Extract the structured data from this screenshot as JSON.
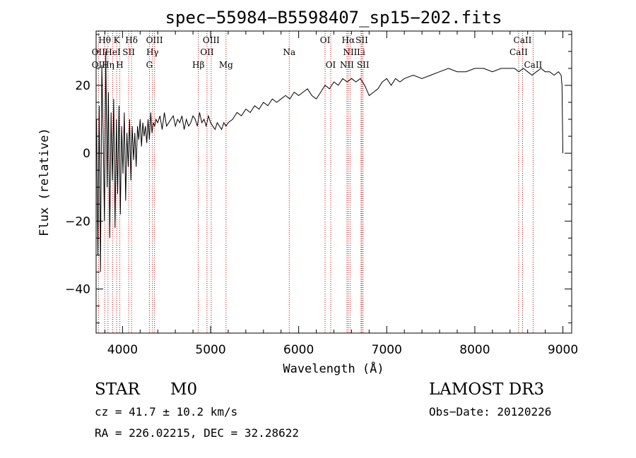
{
  "chart_data": {
    "type": "line",
    "title": "spec−55984−B5598407_sp15−202.fits",
    "xlabel": "Wavelength (Å)",
    "ylabel": "Flux (relative)",
    "xlim": [
      3700,
      9100
    ],
    "ylim": [
      -53,
      36
    ],
    "xticks": [
      4000,
      5000,
      6000,
      7000,
      8000,
      9000
    ],
    "yticks": [
      -40,
      -20,
      0,
      20
    ],
    "ytick_labels": [
      "−40",
      "−20",
      "0",
      "20"
    ],
    "series": [
      {
        "name": "flux",
        "x": [
          3705,
          3720,
          3735,
          3750,
          3765,
          3780,
          3795,
          3810,
          3825,
          3840,
          3855,
          3870,
          3885,
          3900,
          3915,
          3930,
          3945,
          3960,
          3975,
          3990,
          4005,
          4020,
          4035,
          4050,
          4065,
          4080,
          4095,
          4110,
          4125,
          4140,
          4155,
          4170,
          4185,
          4200,
          4215,
          4230,
          4245,
          4260,
          4275,
          4290,
          4305,
          4320,
          4335,
          4350,
          4365,
          4380,
          4400,
          4425,
          4450,
          4475,
          4500,
          4525,
          4550,
          4575,
          4600,
          4625,
          4650,
          4675,
          4700,
          4725,
          4750,
          4775,
          4800,
          4825,
          4850,
          4875,
          4900,
          4925,
          4950,
          4975,
          5000,
          5025,
          5050,
          5075,
          5100,
          5125,
          5150,
          5175,
          5200,
          5250,
          5300,
          5350,
          5400,
          5450,
          5500,
          5550,
          5600,
          5650,
          5700,
          5750,
          5800,
          5850,
          5900,
          5950,
          6000,
          6050,
          6100,
          6150,
          6200,
          6250,
          6300,
          6350,
          6400,
          6450,
          6500,
          6550,
          6600,
          6650,
          6700,
          6750,
          6800,
          6850,
          6900,
          6950,
          7000,
          7050,
          7100,
          7150,
          7200,
          7300,
          7400,
          7500,
          7600,
          7700,
          7800,
          7900,
          8000,
          8100,
          8200,
          8300,
          8400,
          8450,
          8500,
          8550,
          8600,
          8650,
          8700,
          8750,
          8800,
          8850,
          8900,
          8950,
          8980,
          8990,
          9000
        ],
        "y": [
          10,
          -30,
          14,
          -35,
          26,
          5,
          -20,
          30,
          -10,
          18,
          -25,
          12,
          -8,
          16,
          -22,
          10,
          -12,
          14,
          -18,
          8,
          -6,
          12,
          -14,
          6,
          -4,
          10,
          -8,
          8,
          -2,
          6,
          -4,
          8,
          4,
          10,
          2,
          9,
          5,
          8,
          3,
          10,
          4,
          12,
          6,
          9,
          8,
          10,
          9,
          11,
          7,
          12,
          8,
          9,
          10,
          11,
          8,
          10,
          9,
          11,
          7,
          10,
          8,
          9,
          11,
          10,
          8,
          12,
          9,
          10,
          8,
          11,
          9,
          8,
          7,
          9,
          8,
          7,
          9,
          8,
          9,
          10,
          12,
          11,
          13,
          12,
          14,
          13,
          15,
          14,
          16,
          15,
          16,
          17,
          16,
          18,
          17,
          18,
          19,
          17,
          16,
          18,
          20,
          19,
          21,
          20,
          22,
          21,
          22,
          21,
          22,
          20,
          17,
          18,
          19,
          21,
          22,
          20,
          22,
          21,
          22,
          23,
          22,
          23,
          24,
          25,
          24,
          24,
          25,
          25,
          24,
          25,
          25,
          25,
          24,
          25,
          24,
          23,
          24,
          25,
          24,
          24,
          23,
          24,
          23,
          20,
          0
        ],
        "color": "#000000"
      }
    ],
    "line_labels": [
      {
        "label": "Hθ",
        "x": 3797,
        "row": 1
      },
      {
        "label": "K",
        "x": 3934,
        "row": 1
      },
      {
        "label": "Hδ",
        "x": 4102,
        "row": 1
      },
      {
        "label": "OIII",
        "x": 4363,
        "row": 1
      },
      {
        "label": "OIII",
        "x": 5007,
        "row": 1
      },
      {
        "label": "OI",
        "x": 6300,
        "row": 1
      },
      {
        "label": "Hα",
        "x": 6563,
        "row": 1
      },
      {
        "label": "SII",
        "x": 6717,
        "row": 1
      },
      {
        "label": "CaII",
        "x": 8542,
        "row": 1
      },
      {
        "label": "OII",
        "x": 3727,
        "row": 2
      },
      {
        "label": "HeI",
        "x": 3889,
        "row": 2
      },
      {
        "label": "SII",
        "x": 4070,
        "row": 2
      },
      {
        "label": "Hγ",
        "x": 4340,
        "row": 2
      },
      {
        "label": "OII",
        "x": 4959,
        "row": 2
      },
      {
        "label": "Na",
        "x": 5893,
        "row": 2
      },
      {
        "label": "NII",
        "x": 6584,
        "row": 2
      },
      {
        "label": "Li",
        "x": 6708,
        "row": 2
      },
      {
        "label": "CaII",
        "x": 8498,
        "row": 2
      },
      {
        "label": "OII",
        "x": 3727,
        "row": 3
      },
      {
        "label": "Hη",
        "x": 3835,
        "row": 3
      },
      {
        "label": "H",
        "x": 3969,
        "row": 3
      },
      {
        "label": "G",
        "x": 4305,
        "row": 3
      },
      {
        "label": "Hβ",
        "x": 4861,
        "row": 3
      },
      {
        "label": "Mg",
        "x": 5175,
        "row": 3
      },
      {
        "label": "OI",
        "x": 6364,
        "row": 3
      },
      {
        "label": "NII",
        "x": 6548,
        "row": 3
      },
      {
        "label": "SII",
        "x": 6731,
        "row": 3
      },
      {
        "label": "CaII",
        "x": 8662,
        "row": 3
      }
    ],
    "line_positions": [
      3727,
      3798,
      3835,
      3889,
      3934,
      3969,
      4070,
      4102,
      4305,
      4340,
      4363,
      4861,
      4959,
      5007,
      5175,
      5893,
      6300,
      6364,
      6548,
      6563,
      6584,
      6708,
      6717,
      6731,
      8498,
      8542,
      8662
    ],
    "line_color": "#cc0000"
  },
  "info": {
    "class_label": "STAR",
    "subclass": "M0",
    "survey": "LAMOST DR3",
    "cz": "cz = 41.7 ± 10.2 km/s",
    "obs_date": "Obs−Date: 20120226",
    "coords": "RA = 226.02215, DEC =  32.28622"
  }
}
